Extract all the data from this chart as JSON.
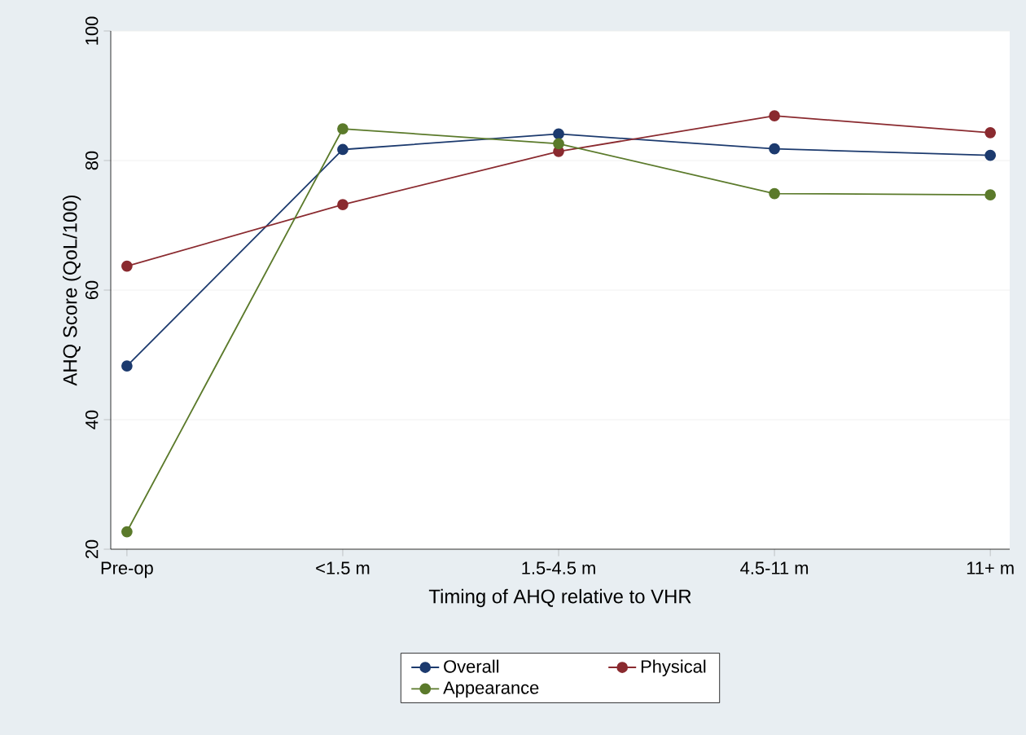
{
  "chart_data": {
    "type": "line",
    "xlabel": "Timing of AHQ relative to VHR",
    "ylabel": "AHQ Score (QoL/100)",
    "categories": [
      "Pre-op",
      "<1.5 m",
      "1.5-4.5 m",
      "4.5-11 m",
      "11+ m"
    ],
    "series": [
      {
        "name": "Overall",
        "color": "#1c3a6e",
        "values": [
          48.3,
          81.7,
          84.1,
          81.8,
          80.8
        ]
      },
      {
        "name": "Physical",
        "color": "#8a2a2f",
        "values": [
          63.7,
          73.2,
          81.4,
          86.9,
          84.3
        ]
      },
      {
        "name": "Appearance",
        "color": "#5b7a2b",
        "values": [
          22.7,
          84.9,
          82.6,
          74.9,
          74.7
        ]
      }
    ],
    "ylim": [
      20,
      100
    ],
    "yticks": [
      20,
      40,
      60,
      80,
      100
    ],
    "grid": "y",
    "legend": "bottom",
    "marker": "circle",
    "line_style": "solid"
  }
}
